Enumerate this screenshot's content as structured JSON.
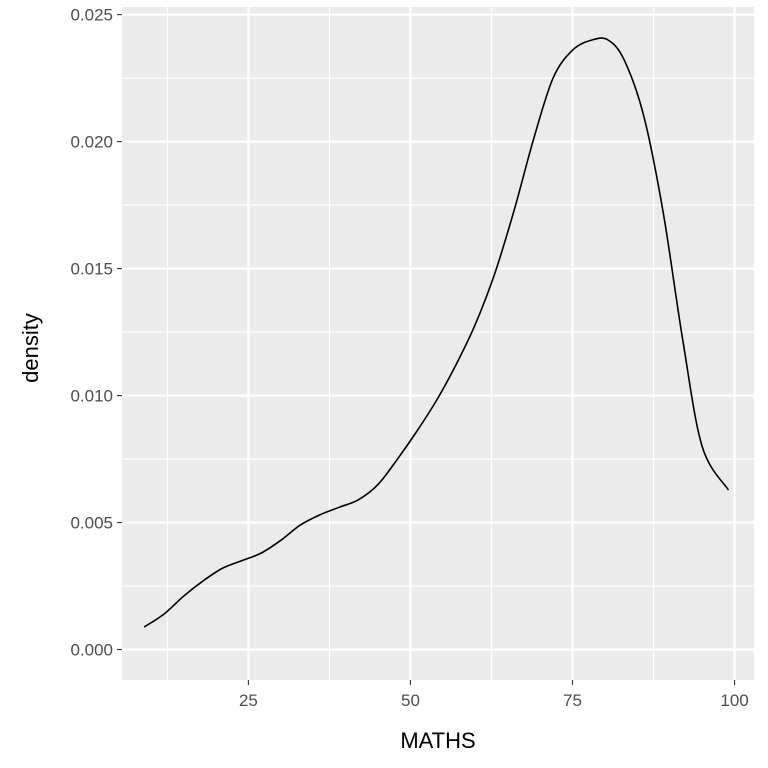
{
  "chart_data": {
    "type": "line",
    "title": "",
    "xlabel": "MATHS",
    "ylabel": "density",
    "xlim": [
      5.5,
      103
    ],
    "ylim": [
      -0.0012,
      0.0253
    ],
    "x_ticks": [
      25,
      50,
      75,
      100
    ],
    "x_tick_labels": [
      "25",
      "50",
      "75",
      "100"
    ],
    "x_minor_ticks": [
      12.5,
      37.5,
      62.5,
      87.5
    ],
    "y_ticks": [
      0.0,
      0.005,
      0.01,
      0.015,
      0.02,
      0.025
    ],
    "y_tick_labels": [
      "0.000",
      "0.005",
      "0.010",
      "0.015",
      "0.020",
      "0.025"
    ],
    "y_minor_ticks": [
      0.0025,
      0.0075,
      0.0125,
      0.0175,
      0.0225
    ],
    "grid": true,
    "legend": "none",
    "colors": {
      "panel": "#ebebeb",
      "grid": "#ffffff",
      "line": "#000000",
      "tick_text": "#4d4d4d"
    },
    "series": [
      {
        "x": [
          9,
          12,
          15,
          18,
          21,
          24,
          27,
          30,
          33,
          36,
          39,
          42,
          45,
          48,
          51,
          54,
          57,
          60,
          63,
          66,
          69,
          72,
          75,
          78,
          80.5,
          83,
          86,
          89,
          92,
          95,
          99
        ],
        "y": [
          0.0009,
          0.0014,
          0.0021,
          0.0027,
          0.0032,
          0.0035,
          0.0038,
          0.0043,
          0.0049,
          0.0053,
          0.0056,
          0.0059,
          0.0065,
          0.0075,
          0.0086,
          0.0098,
          0.0112,
          0.0128,
          0.0148,
          0.0173,
          0.0201,
          0.0225,
          0.0236,
          0.024,
          0.024,
          0.0232,
          0.021,
          0.0172,
          0.0122,
          0.008,
          0.0063
        ]
      }
    ]
  }
}
